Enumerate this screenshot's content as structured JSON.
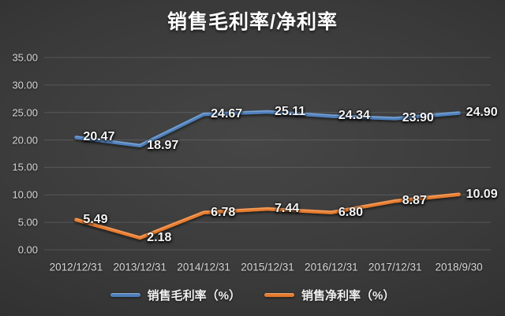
{
  "title": "销售毛利率/净利率",
  "legend": {
    "items": [
      {
        "label": "销售毛利率（%）",
        "color": "#4f81bd"
      },
      {
        "label": "销售净利率（%）",
        "color": "#e87b2d"
      }
    ]
  },
  "chart_data": {
    "type": "line",
    "title": "销售毛利率/净利率",
    "categories": [
      "2012/12/31",
      "2013/12/31",
      "2014/12/31",
      "2015/12/31",
      "2016/12/31",
      "2017/12/31",
      "2018/9/30"
    ],
    "series": [
      {
        "name": "销售毛利率（%）",
        "color": "#4f81bd",
        "values": [
          20.47,
          18.97,
          24.67,
          25.11,
          24.34,
          23.9,
          24.9
        ]
      },
      {
        "name": "销售净利率（%）",
        "color": "#e87b2d",
        "values": [
          5.49,
          2.18,
          6.78,
          7.44,
          6.8,
          8.87,
          10.09
        ]
      }
    ],
    "ylim": [
      0,
      35
    ],
    "y_tick_step": 5,
    "y_ticks": [
      "0.00",
      "5.00",
      "10.00",
      "15.00",
      "20.00",
      "25.00",
      "30.00",
      "35.00"
    ],
    "grid": true,
    "data_labels": true,
    "data_label_decimals": 2,
    "legend_position": "bottom",
    "gridline_color": "rgba(255,255,255,0.14)",
    "text_color": "#d6d6d6"
  }
}
